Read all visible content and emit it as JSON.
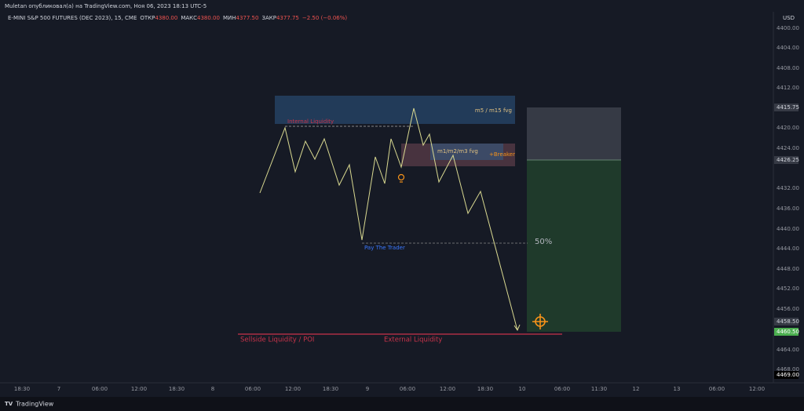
{
  "header": {
    "publisher": "Muletan опубликовал(а) на TradingView.com, Ноя 06, 2023 18:13 UTC-5",
    "symbol": "E-MINI S&P 500 FUTURES (DEC 2023), 15, CME",
    "open_label": "ОТКР",
    "open": "4380.00",
    "high_label": "МАКС",
    "high": "4380.00",
    "low_label": "МИН",
    "low": "4377.50",
    "close_label": "ЗАКР",
    "close": "4377.75",
    "change": "−2.50 (−0.06%)"
  },
  "price_axis": {
    "currency": "USD",
    "labels": [
      "4400.00",
      "4404.00",
      "4408.00",
      "4412.00",
      "4415.75",
      "4420.00",
      "4424.00",
      "4426.25",
      "4432.00",
      "4436.00",
      "4440.00",
      "4444.00",
      "4448.00",
      "4452.00",
      "4456.00",
      "4458.50",
      "4460.50",
      "4464.00",
      "4468.00",
      "4469.00"
    ]
  },
  "time_axis": {
    "labels": [
      "18:30",
      "7",
      "06:00",
      "12:00",
      "18:30",
      "8",
      "06:00",
      "12:00",
      "18:30",
      "9",
      "06:00",
      "12:00",
      "18:30",
      "10",
      "06:00",
      "11:30",
      "12",
      "13",
      "06:00",
      "12:00"
    ]
  },
  "annotations": {
    "internal_liquidity": "Internal Liquidity",
    "htf_fvg": "m5 / m15 fvg",
    "ltf_fvg": "m1/m2/m3 fvg",
    "breaker": "+Breaker",
    "half": "50%",
    "pay_the_trader": "Pay The Trader",
    "sellside": "Sellside Liquidity / POI",
    "external_liquidity": "External Liquidity"
  },
  "footer": {
    "brand": "TradingView"
  }
}
